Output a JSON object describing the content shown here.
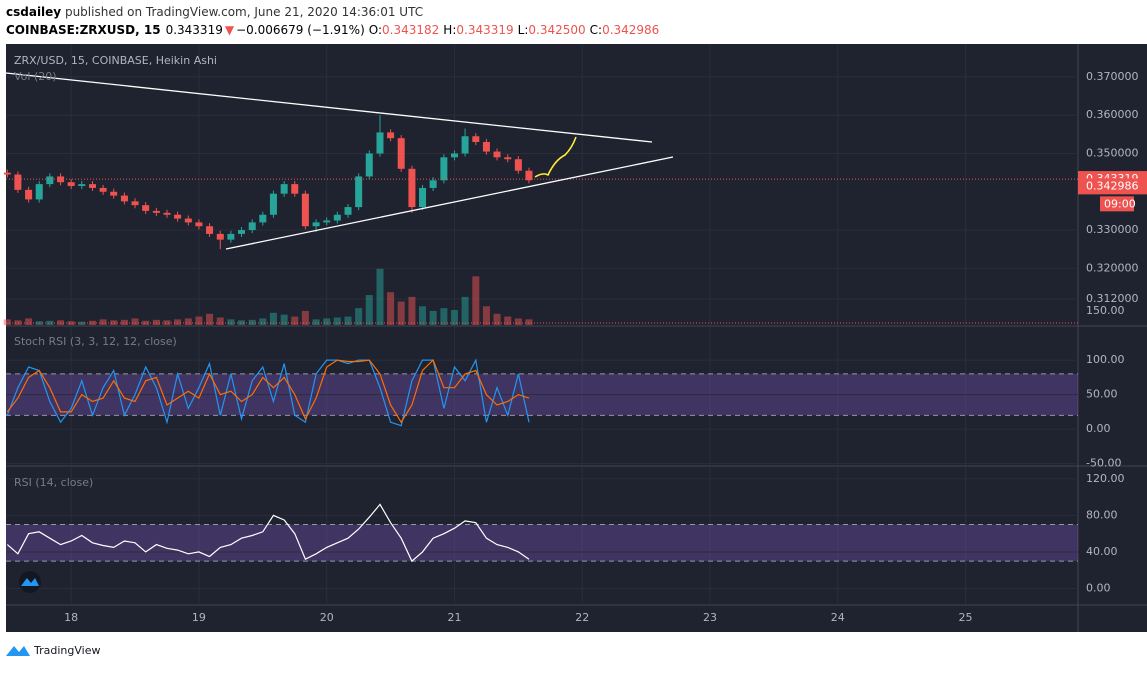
{
  "header": {
    "author": "csdailey",
    "published": " published on TradingView.com, June 21, 2020 14:36:01 UTC",
    "symbol": "COINBASE:ZRXUSD, 15",
    "price": "0.343319",
    "arrow": "▼",
    "change": "−0.006679 (−1.91%)",
    "o_label": "O:",
    "o": "0.343182",
    "h_label": "H:",
    "h": "0.343319",
    "l_label": "L:",
    "l": "0.342500",
    "c_label": "C:",
    "c": "0.342986"
  },
  "footer": {
    "brand": "TradingView"
  },
  "chart_data": [
    {
      "type": "candlestick",
      "title": "ZRX/USD, 15, COINBASE, Heikin Ashi",
      "volume_title": "Vol (20)",
      "x": [
        17.5,
        17.583,
        17.667,
        17.75,
        17.833,
        17.917,
        18,
        18.083,
        18.167,
        18.25,
        18.333,
        18.417,
        18.5,
        18.583,
        18.667,
        18.75,
        18.833,
        18.917,
        19,
        19.083,
        19.167,
        19.25,
        19.333,
        19.417,
        19.5,
        19.583,
        19.667,
        19.75,
        19.833,
        19.917,
        20,
        20.083,
        20.167,
        20.25,
        20.333,
        20.417,
        20.5,
        20.583,
        20.667,
        20.75,
        20.833,
        20.917,
        21,
        21.083,
        21.167,
        21.25,
        21.333,
        21.417,
        21.5,
        21.583
      ],
      "open": [
        0.345,
        0.3445,
        0.3405,
        0.338,
        0.342,
        0.344,
        0.3425,
        0.3415,
        0.342,
        0.341,
        0.34,
        0.339,
        0.3375,
        0.3365,
        0.335,
        0.3345,
        0.334,
        0.333,
        0.332,
        0.331,
        0.329,
        0.3275,
        0.329,
        0.33,
        0.332,
        0.334,
        0.3395,
        0.342,
        0.3395,
        0.331,
        0.332,
        0.3325,
        0.334,
        0.336,
        0.344,
        0.35,
        0.3555,
        0.354,
        0.346,
        0.336,
        0.341,
        0.343,
        0.349,
        0.35,
        0.3545,
        0.353,
        0.3505,
        0.349,
        0.3485,
        0.3455
      ],
      "high": [
        0.3458,
        0.3453,
        0.3413,
        0.3428,
        0.3448,
        0.3448,
        0.3433,
        0.3428,
        0.3428,
        0.3418,
        0.3408,
        0.3398,
        0.3383,
        0.3373,
        0.3358,
        0.3353,
        0.3348,
        0.3338,
        0.3328,
        0.3318,
        0.3298,
        0.3298,
        0.3308,
        0.3328,
        0.3348,
        0.3403,
        0.3428,
        0.3428,
        0.3403,
        0.3328,
        0.3333,
        0.3348,
        0.3368,
        0.3448,
        0.3508,
        0.36,
        0.3563,
        0.3548,
        0.3468,
        0.3418,
        0.3438,
        0.3498,
        0.3508,
        0.3565,
        0.3553,
        0.3538,
        0.3513,
        0.3498,
        0.3493,
        0.3463
      ],
      "low": [
        0.3437,
        0.3397,
        0.3372,
        0.3372,
        0.3412,
        0.3417,
        0.3407,
        0.3407,
        0.3402,
        0.3392,
        0.3382,
        0.3367,
        0.3357,
        0.3342,
        0.3337,
        0.3332,
        0.3322,
        0.3312,
        0.3302,
        0.3282,
        0.325,
        0.3267,
        0.3282,
        0.3292,
        0.3312,
        0.3332,
        0.3387,
        0.3387,
        0.3302,
        0.3295,
        0.3312,
        0.3317,
        0.3332,
        0.3352,
        0.3432,
        0.3492,
        0.3532,
        0.3452,
        0.3345,
        0.3352,
        0.3402,
        0.3422,
        0.3482,
        0.3492,
        0.3522,
        0.3497,
        0.3482,
        0.3477,
        0.3447,
        0.3422
      ],
      "close": [
        0.3445,
        0.3405,
        0.338,
        0.342,
        0.344,
        0.3425,
        0.3415,
        0.342,
        0.341,
        0.34,
        0.339,
        0.3375,
        0.3365,
        0.335,
        0.3345,
        0.334,
        0.333,
        0.332,
        0.331,
        0.329,
        0.3275,
        0.329,
        0.33,
        0.332,
        0.334,
        0.3395,
        0.342,
        0.3395,
        0.331,
        0.332,
        0.3325,
        0.334,
        0.336,
        0.344,
        0.35,
        0.3555,
        0.354,
        0.346,
        0.336,
        0.341,
        0.343,
        0.349,
        0.35,
        0.3545,
        0.353,
        0.3505,
        0.349,
        0.3485,
        0.3455,
        0.343
      ],
      "volume": [
        60,
        50,
        70,
        40,
        45,
        50,
        40,
        35,
        45,
        60,
        50,
        55,
        70,
        45,
        55,
        50,
        60,
        70,
        90,
        120,
        80,
        60,
        50,
        55,
        70,
        130,
        110,
        90,
        150,
        60,
        70,
        80,
        90,
        180,
        320,
        600,
        350,
        250,
        300,
        200,
        150,
        180,
        160,
        300,
        520,
        200,
        120,
        90,
        70,
        60
      ],
      "up_color": "#26a69a",
      "down_color": "#ef5350",
      "xlim": [
        17.49,
        25.88
      ],
      "xticks": [
        18,
        19,
        20,
        21,
        22,
        23,
        24,
        25
      ],
      "ylim": [
        0.3052,
        0.3786
      ],
      "yticks": [
        {
          "value": 0.37,
          "label": "0.370000"
        },
        {
          "value": 0.36,
          "label": "0.360000"
        },
        {
          "value": 0.35,
          "label": "0.350000"
        },
        {
          "value": 0.33,
          "label": "0.330000"
        },
        {
          "value": 0.32,
          "label": "0.320000"
        },
        {
          "value": 0.312,
          "label": "0.312000"
        }
      ],
      "volume_ylim": [
        0,
        3000
      ],
      "volume_ticks": [
        {
          "value": 150,
          "label": "150.00"
        }
      ],
      "last_price": 0.343319,
      "close_price": 0.342986,
      "countdown": "09:00",
      "grid": true
    },
    {
      "type": "line",
      "title": "Stoch RSI (3, 3, 12, 12, close)",
      "series": [
        {
          "color": "#2196f3",
          "values": [
            20,
            60,
            90,
            85,
            40,
            10,
            30,
            70,
            20,
            60,
            85,
            20,
            50,
            90,
            60,
            10,
            80,
            30,
            60,
            95,
            20,
            80,
            15,
            70,
            90,
            40,
            95,
            20,
            10,
            80,
            100,
            100,
            95,
            100,
            100,
            60,
            10,
            5,
            70,
            100,
            100,
            30,
            90,
            70,
            100,
            10,
            60,
            20,
            80,
            10
          ]
        },
        {
          "color": "#ff6d00",
          "values": [
            25,
            45,
            75,
            85,
            60,
            25,
            25,
            50,
            40,
            45,
            70,
            45,
            40,
            70,
            75,
            35,
            45,
            55,
            45,
            80,
            50,
            55,
            40,
            50,
            75,
            60,
            75,
            50,
            15,
            45,
            90,
            100,
            98,
            98,
            100,
            80,
            35,
            10,
            35,
            85,
            100,
            60,
            60,
            80,
            85,
            50,
            35,
            40,
            50,
            45
          ]
        }
      ],
      "ylim": [
        -52,
        148
      ],
      "yticks": [
        {
          "value": 100,
          "label": "100.00"
        },
        {
          "value": 50,
          "label": "50.00"
        },
        {
          "value": 0,
          "label": "0.00"
        },
        {
          "value": -50,
          "label": "-50.00"
        }
      ],
      "bands": [
        20,
        80
      ],
      "grid": true
    },
    {
      "type": "line",
      "title": "RSI (14, close)",
      "series": [
        {
          "color": "#ffffff",
          "values": [
            48,
            38,
            60,
            62,
            55,
            48,
            52,
            58,
            50,
            47,
            45,
            52,
            50,
            40,
            48,
            44,
            42,
            38,
            40,
            35,
            45,
            48,
            55,
            58,
            62,
            80,
            75,
            60,
            32,
            38,
            45,
            50,
            55,
            65,
            78,
            92,
            72,
            55,
            30,
            40,
            55,
            60,
            66,
            74,
            72,
            55,
            48,
            45,
            40,
            32
          ]
        }
      ],
      "ylim": [
        -17,
        133
      ],
      "yticks": [
        {
          "value": 120,
          "label": "120.00"
        },
        {
          "value": 80,
          "label": "80.00"
        },
        {
          "value": 40,
          "label": "40.00"
        },
        {
          "value": 0,
          "label": "0.00"
        }
      ],
      "bands": [
        30,
        70
      ],
      "grid": true
    }
  ]
}
